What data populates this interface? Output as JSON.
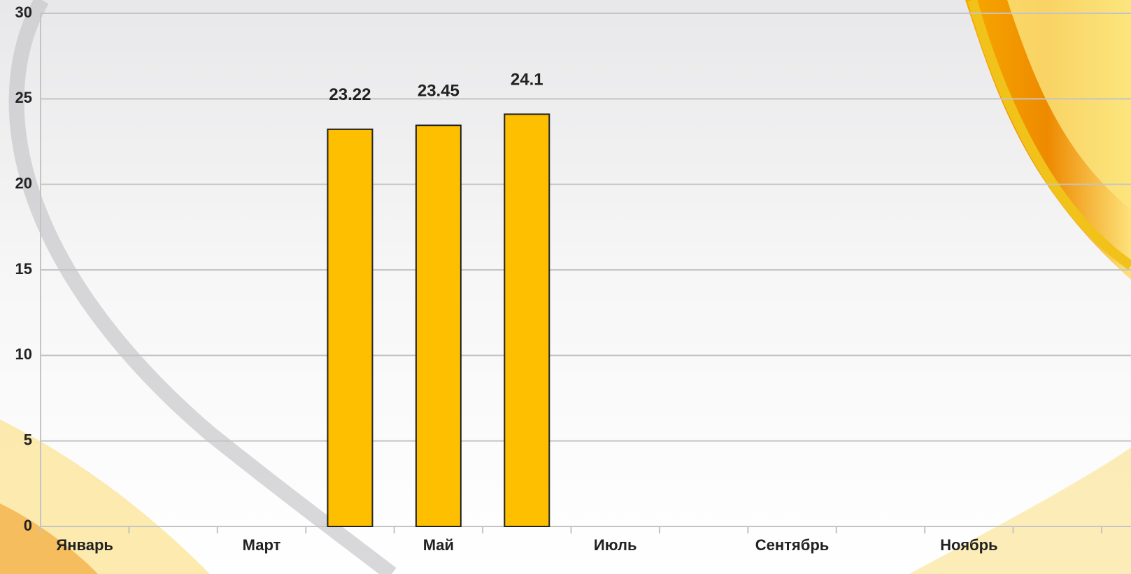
{
  "chart_data": {
    "type": "bar",
    "categories": [
      "Январь",
      null,
      "Март",
      null,
      "Май",
      null,
      "Июль",
      null,
      "Сентябрь",
      null,
      "Ноябрь",
      null
    ],
    "values": [
      0,
      0,
      0,
      23.22,
      23.45,
      24.1,
      0,
      null,
      null,
      null,
      null,
      null
    ],
    "color": "#fdbf00",
    "ylim": [
      0,
      30
    ],
    "yticks": [
      0,
      5,
      10,
      15,
      20,
      25,
      30
    ],
    "grid": true
  }
}
